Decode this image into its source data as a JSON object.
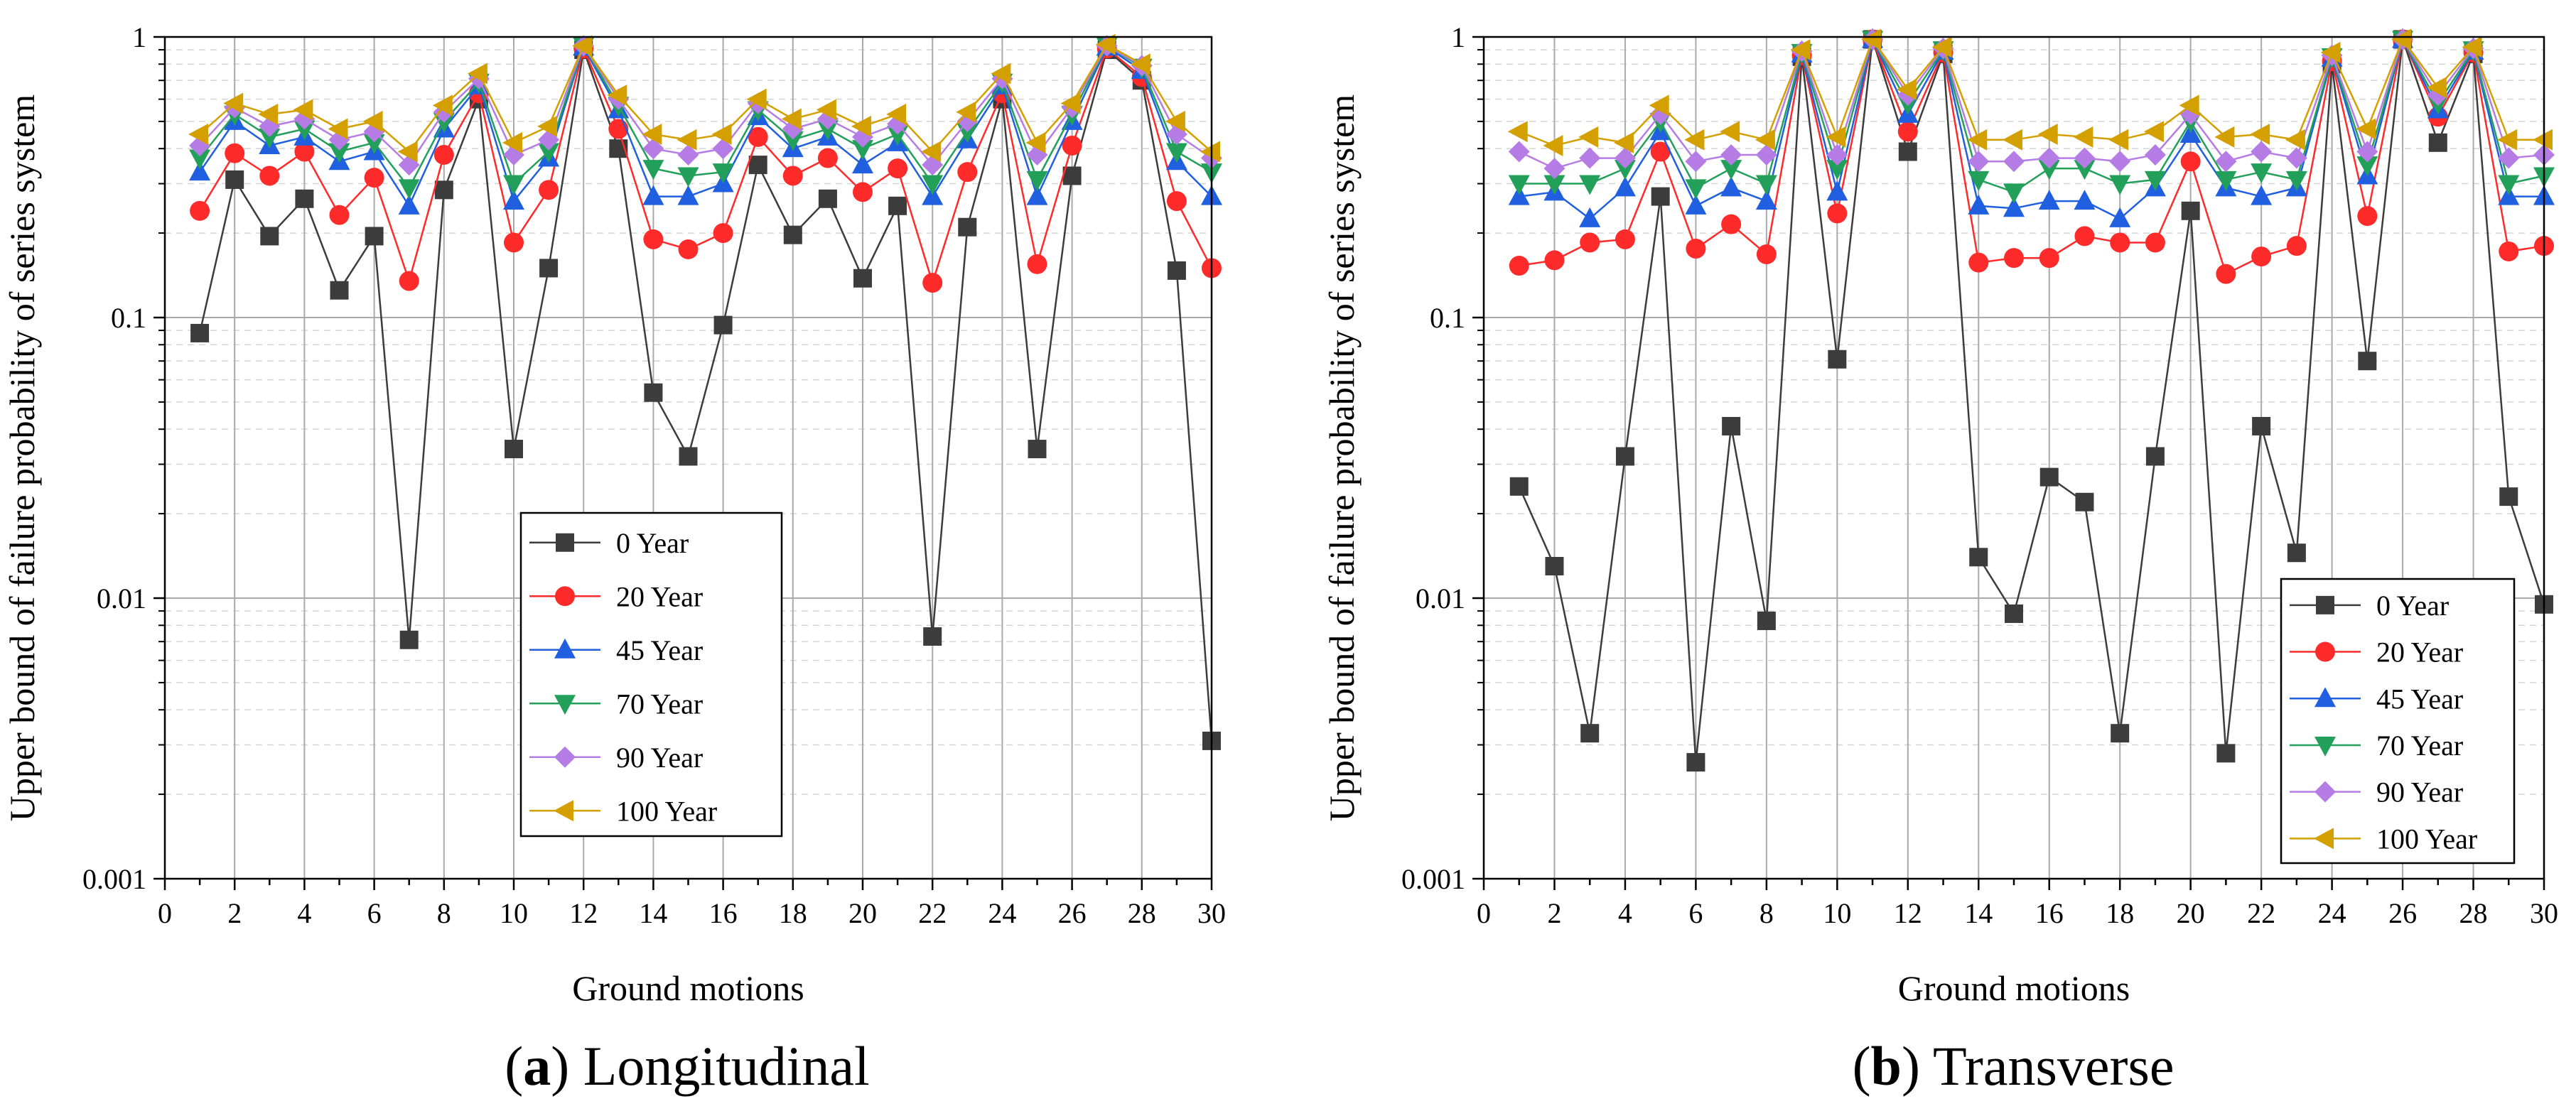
{
  "chart_data": [
    {
      "type": "line",
      "title": "Longitudinal",
      "caption_letter": "a",
      "xlabel": "Ground motions",
      "ylabel": "Upper bound of failure probability of series system",
      "xscale": "linear",
      "yscale": "log",
      "xlim": [
        0,
        30
      ],
      "ylim": [
        0.001,
        1
      ],
      "xticks": [
        "0",
        "2",
        "4",
        "6",
        "8",
        "10",
        "12",
        "14",
        "16",
        "18",
        "20",
        "22",
        "24",
        "26",
        "28",
        "30"
      ],
      "yticks": [
        "0.001",
        "0.01",
        "0.1",
        "1"
      ],
      "legend_position": "center-bottom",
      "x": [
        1,
        2,
        3,
        4,
        5,
        6,
        7,
        8,
        9,
        10,
        11,
        12,
        13,
        14,
        15,
        16,
        17,
        18,
        19,
        20,
        21,
        22,
        23,
        24,
        25,
        26,
        27,
        28,
        29,
        30
      ],
      "series": [
        {
          "name": "0 Year",
          "color": "#3c3c3c",
          "marker": "square",
          "values": [
            0.088,
            0.31,
            0.195,
            0.265,
            0.125,
            0.195,
            0.0071,
            0.285,
            0.6,
            0.034,
            0.15,
            0.9,
            0.4,
            0.054,
            0.032,
            0.094,
            0.35,
            0.197,
            0.265,
            0.138,
            0.25,
            0.0073,
            0.21,
            0.6,
            0.034,
            0.32,
            0.9,
            0.7,
            0.147,
            0.0031
          ]
        },
        {
          "name": "20 Year",
          "color": "#ff2a2a",
          "marker": "circle",
          "values": [
            0.24,
            0.385,
            0.32,
            0.39,
            0.232,
            0.315,
            0.135,
            0.38,
            0.63,
            0.185,
            0.285,
            0.91,
            0.47,
            0.19,
            0.175,
            0.2,
            0.44,
            0.32,
            0.37,
            0.28,
            0.34,
            0.133,
            0.33,
            0.63,
            0.155,
            0.41,
            0.91,
            0.72,
            0.26,
            0.15
          ]
        },
        {
          "name": "45 Year",
          "color": "#1f5fe0",
          "marker": "triangle-up",
          "values": [
            0.33,
            0.5,
            0.41,
            0.44,
            0.36,
            0.39,
            0.25,
            0.47,
            0.67,
            0.26,
            0.37,
            0.92,
            0.55,
            0.27,
            0.27,
            0.3,
            0.52,
            0.4,
            0.44,
            0.35,
            0.42,
            0.27,
            0.43,
            0.67,
            0.27,
            0.5,
            0.92,
            0.76,
            0.36,
            0.27
          ]
        },
        {
          "name": "70 Year",
          "color": "#22a05a",
          "marker": "triangle-down",
          "values": [
            0.37,
            0.53,
            0.44,
            0.47,
            0.39,
            0.42,
            0.29,
            0.5,
            0.69,
            0.3,
            0.39,
            0.93,
            0.57,
            0.34,
            0.32,
            0.33,
            0.55,
            0.43,
            0.47,
            0.4,
            0.45,
            0.3,
            0.46,
            0.69,
            0.31,
            0.53,
            0.93,
            0.78,
            0.39,
            0.33
          ]
        },
        {
          "name": "90 Year",
          "color": "#b67ce6",
          "marker": "diamond",
          "values": [
            0.41,
            0.56,
            0.48,
            0.51,
            0.43,
            0.46,
            0.35,
            0.54,
            0.71,
            0.38,
            0.43,
            0.93,
            0.6,
            0.4,
            0.38,
            0.4,
            0.58,
            0.47,
            0.51,
            0.44,
            0.49,
            0.35,
            0.5,
            0.71,
            0.38,
            0.56,
            0.93,
            0.79,
            0.45,
            0.37
          ]
        },
        {
          "name": "100 Year",
          "color": "#d4a000",
          "marker": "triangle-left",
          "values": [
            0.45,
            0.58,
            0.53,
            0.55,
            0.47,
            0.5,
            0.39,
            0.57,
            0.74,
            0.42,
            0.48,
            0.93,
            0.62,
            0.45,
            0.43,
            0.45,
            0.6,
            0.51,
            0.55,
            0.48,
            0.53,
            0.39,
            0.54,
            0.74,
            0.42,
            0.58,
            0.94,
            0.8,
            0.5,
            0.39
          ]
        }
      ]
    },
    {
      "type": "line",
      "title": "Transverse",
      "caption_letter": "b",
      "xlabel": "Ground motions",
      "ylabel": "Upper bound of failure probability of series system",
      "xscale": "linear",
      "yscale": "log",
      "xlim": [
        0,
        30
      ],
      "ylim": [
        0.001,
        1
      ],
      "xticks": [
        "0",
        "2",
        "4",
        "6",
        "8",
        "10",
        "12",
        "14",
        "16",
        "18",
        "20",
        "22",
        "24",
        "26",
        "28",
        "30"
      ],
      "yticks": [
        "0.001",
        "0.01",
        "0.1",
        "1"
      ],
      "legend_position": "bottom-right",
      "x": [
        1,
        2,
        3,
        4,
        5,
        6,
        7,
        8,
        9,
        10,
        11,
        12,
        13,
        14,
        15,
        16,
        17,
        18,
        19,
        20,
        21,
        22,
        23,
        24,
        25,
        26,
        27,
        28,
        29,
        30
      ],
      "series": [
        {
          "name": "0 Year",
          "color": "#3c3c3c",
          "marker": "square",
          "values": [
            0.025,
            0.013,
            0.0033,
            0.032,
            0.27,
            0.0026,
            0.041,
            0.0083,
            0.85,
            0.071,
            0.98,
            0.39,
            0.87,
            0.014,
            0.0088,
            0.027,
            0.022,
            0.0033,
            0.032,
            0.24,
            0.0028,
            0.041,
            0.0145,
            0.8,
            0.07,
            0.98,
            0.42,
            0.87,
            0.023,
            0.0095
          ]
        },
        {
          "name": "20 Year",
          "color": "#ff2a2a",
          "marker": "circle",
          "values": [
            0.153,
            0.16,
            0.185,
            0.19,
            0.39,
            0.176,
            0.215,
            0.168,
            0.86,
            0.235,
            0.98,
            0.46,
            0.88,
            0.157,
            0.163,
            0.163,
            0.195,
            0.185,
            0.185,
            0.36,
            0.143,
            0.165,
            0.18,
            0.82,
            0.23,
            0.98,
            0.52,
            0.88,
            0.172,
            0.18
          ]
        },
        {
          "name": "45 Year",
          "color": "#1f5fe0",
          "marker": "triangle-up",
          "values": [
            0.27,
            0.28,
            0.225,
            0.29,
            0.46,
            0.25,
            0.29,
            0.26,
            0.87,
            0.28,
            0.98,
            0.53,
            0.89,
            0.25,
            0.245,
            0.26,
            0.26,
            0.225,
            0.29,
            0.45,
            0.29,
            0.27,
            0.29,
            0.84,
            0.32,
            0.98,
            0.55,
            0.89,
            0.27,
            0.27
          ]
        },
        {
          "name": "70 Year",
          "color": "#22a05a",
          "marker": "triangle-down",
          "values": [
            0.3,
            0.3,
            0.3,
            0.34,
            0.5,
            0.29,
            0.34,
            0.3,
            0.88,
            0.34,
            0.98,
            0.58,
            0.9,
            0.31,
            0.28,
            0.34,
            0.34,
            0.3,
            0.31,
            0.5,
            0.31,
            0.33,
            0.31,
            0.85,
            0.35,
            0.98,
            0.58,
            0.9,
            0.3,
            0.32
          ]
        },
        {
          "name": "90 Year",
          "color": "#b67ce6",
          "marker": "diamond",
          "values": [
            0.39,
            0.34,
            0.37,
            0.37,
            0.53,
            0.36,
            0.38,
            0.38,
            0.89,
            0.38,
            0.98,
            0.62,
            0.91,
            0.36,
            0.36,
            0.37,
            0.37,
            0.36,
            0.38,
            0.53,
            0.36,
            0.39,
            0.37,
            0.86,
            0.39,
            0.98,
            0.62,
            0.91,
            0.37,
            0.38
          ]
        },
        {
          "name": "100 Year",
          "color": "#d4a000",
          "marker": "triangle-left",
          "values": [
            0.46,
            0.41,
            0.44,
            0.42,
            0.57,
            0.43,
            0.46,
            0.43,
            0.9,
            0.44,
            0.98,
            0.65,
            0.92,
            0.43,
            0.43,
            0.45,
            0.44,
            0.43,
            0.46,
            0.57,
            0.44,
            0.45,
            0.43,
            0.88,
            0.47,
            0.98,
            0.66,
            0.92,
            0.43,
            0.43
          ]
        }
      ]
    }
  ]
}
